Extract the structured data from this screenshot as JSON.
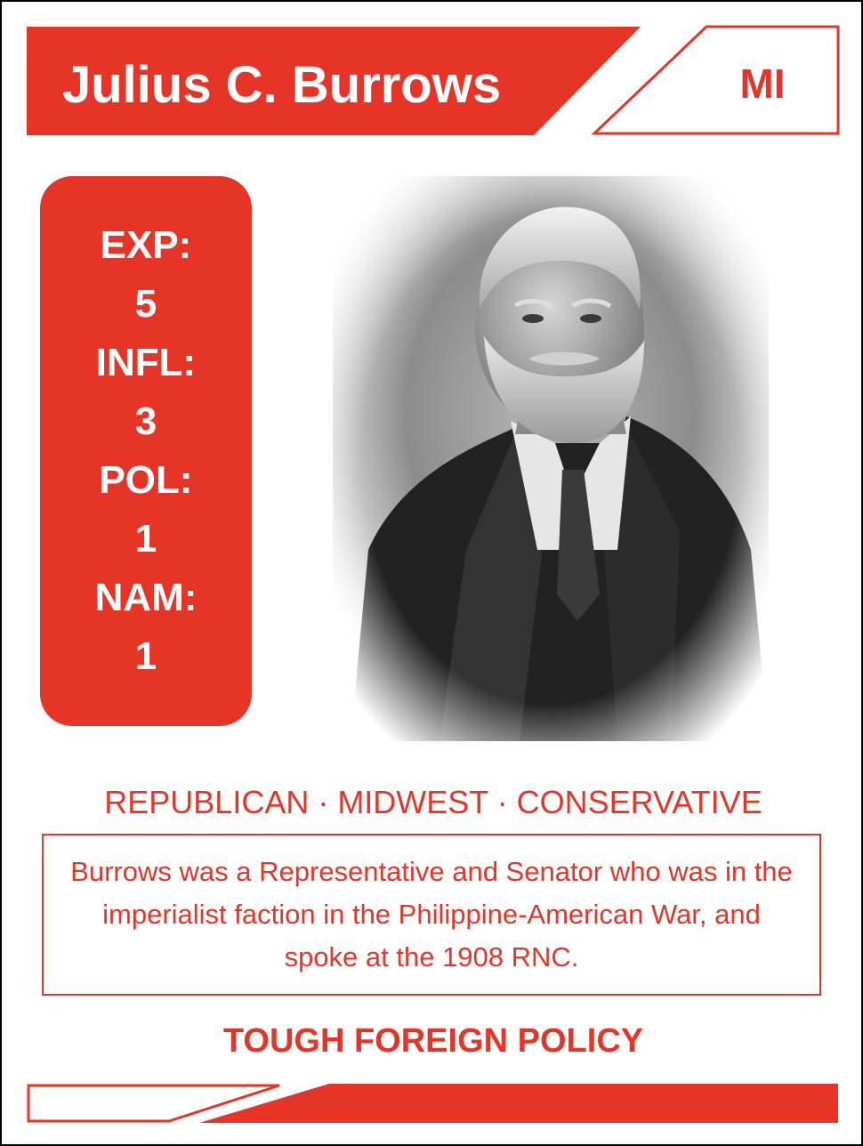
{
  "colors": {
    "accent": "#e63427",
    "background": "#ffffff",
    "border": "#000000"
  },
  "card": {
    "name": "Julius C. Burrows",
    "state": "MI",
    "stats": [
      {
        "label": "EXP:",
        "value": "5"
      },
      {
        "label": "INFL:",
        "value": "3"
      },
      {
        "label": "POL:",
        "value": "1"
      },
      {
        "label": "NAM:",
        "value": "1"
      }
    ],
    "portrait": {
      "icon": "portrait-icon"
    },
    "traits": "REPUBLICAN · MIDWEST · CONSERVATIVE",
    "bio": "Burrows was a Representative and Senator who was in the imperialist faction in the Philippine-American War, and spoke at the 1908 RNC.",
    "policy": "TOUGH FOREIGN POLICY"
  }
}
